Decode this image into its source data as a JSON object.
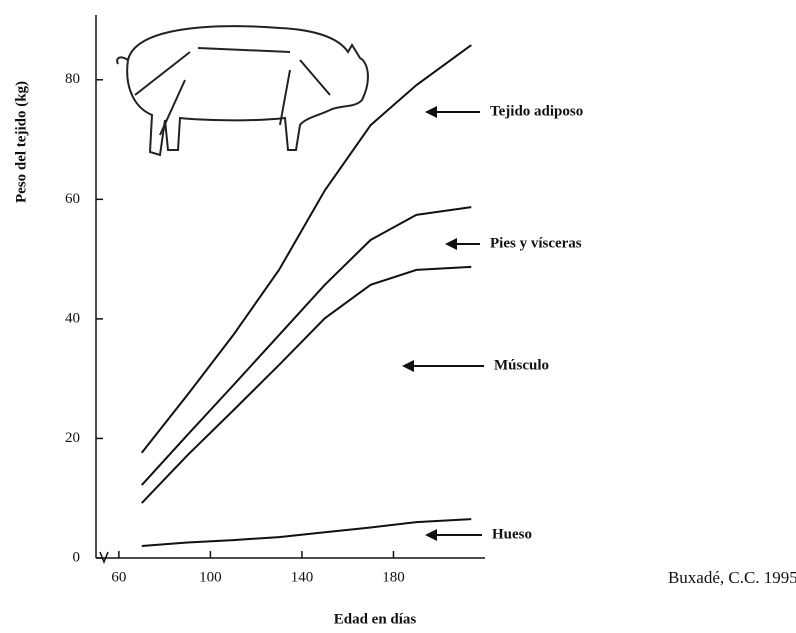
{
  "chart_data": {
    "type": "line",
    "y_label": "Peso del tejido (kg)",
    "x_label": "Edad en días",
    "source": "Buxadé, C.C. 1995.",
    "xlim": [
      50,
      220
    ],
    "xticks": [
      60,
      100,
      140,
      180
    ],
    "ylim": [
      0,
      90
    ],
    "yticks": [
      0,
      20,
      40,
      60,
      80
    ],
    "x": [
      70,
      90,
      110,
      130,
      150,
      170,
      190,
      214
    ],
    "series": [
      {
        "name": "Tejido adiposo",
        "color": "#111111",
        "values": [
          17.6,
          27.3,
          37.3,
          48.2,
          61.5,
          72.4,
          79.1,
          85.8
        ]
      },
      {
        "name": "Pies y vísceras",
        "color": "#111111",
        "values": [
          12.2,
          20.6,
          28.9,
          37.3,
          45.7,
          53.2,
          57.4,
          58.7
        ]
      },
      {
        "name": "Músculo",
        "color": "#111111",
        "values": [
          9.2,
          17.2,
          24.7,
          32.3,
          40.1,
          45.7,
          48.2,
          48.7
        ]
      },
      {
        "name": "Hueso",
        "color": "#111111",
        "values": [
          2.0,
          2.6,
          3.0,
          3.5,
          4.3,
          5.1,
          6.0,
          6.5
        ]
      }
    ]
  }
}
